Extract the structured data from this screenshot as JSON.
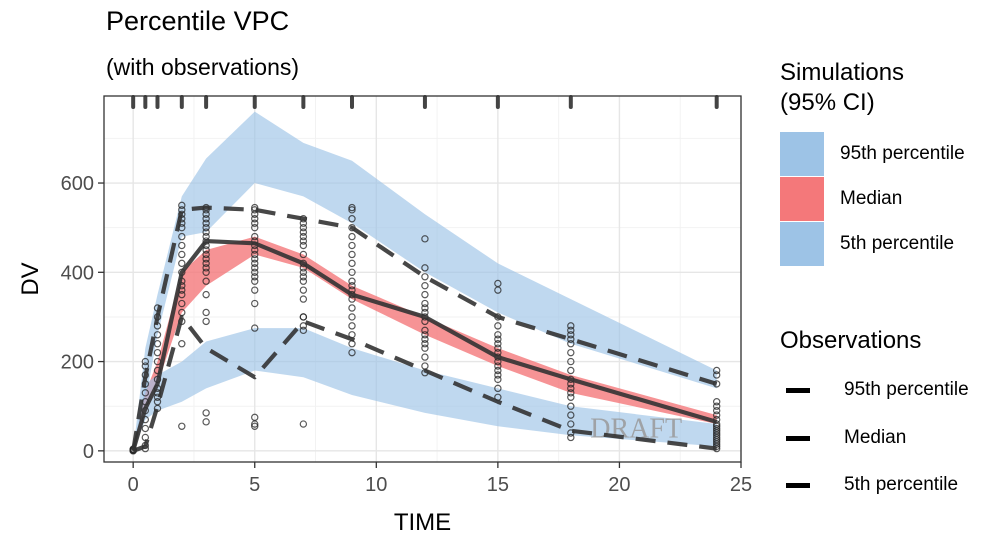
{
  "chart_data": {
    "type": "line",
    "title": "Percentile VPC",
    "subtitle": "(with observations)",
    "xlabel": "TIME",
    "ylabel": "DV",
    "xlim": [
      -1.2,
      25
    ],
    "ylim": [
      -25,
      795
    ],
    "x_ticks": [
      0,
      5,
      10,
      15,
      20,
      25
    ],
    "y_ticks": [
      0,
      200,
      400,
      600
    ],
    "grid": true,
    "watermark": "DRAFT",
    "rug_x": [
      0,
      0.5,
      1,
      2,
      3,
      5,
      7,
      9,
      12,
      15,
      18,
      24
    ],
    "sim_ci": [
      {
        "name": "95th percentile",
        "color": "#9DC3E6",
        "x": [
          0,
          0.5,
          1,
          2,
          3,
          5,
          7,
          9,
          12,
          15,
          18,
          24
        ],
        "lower": [
          0,
          110,
          260,
          480,
          490,
          600,
          570,
          510,
          400,
          310,
          240,
          140
        ],
        "upper": [
          0,
          230,
          350,
          570,
          655,
          760,
          690,
          650,
          530,
          420,
          340,
          180
        ]
      },
      {
        "name": "Median",
        "color": "#F4787A",
        "x": [
          0,
          0.5,
          1,
          2,
          3,
          5,
          7,
          9,
          12,
          15,
          18,
          24
        ],
        "lower": [
          0,
          80,
          150,
          310,
          370,
          440,
          410,
          340,
          260,
          190,
          130,
          60
        ],
        "upper": [
          0,
          130,
          200,
          400,
          450,
          480,
          440,
          370,
          300,
          230,
          170,
          80
        ]
      },
      {
        "name": "5th percentile",
        "color": "#9DC3E6",
        "x": [
          0,
          0.5,
          1,
          2,
          3,
          5,
          7,
          9,
          12,
          15,
          18,
          24
        ],
        "lower": [
          0,
          70,
          90,
          110,
          140,
          180,
          165,
          125,
          85,
          55,
          35,
          10
        ],
        "upper": [
          0,
          150,
          170,
          200,
          245,
          275,
          275,
          230,
          180,
          140,
          100,
          60
        ]
      }
    ],
    "obs_lines": [
      {
        "name": "95th percentile",
        "style": "dashed",
        "x": [
          0,
          0.5,
          1,
          2,
          3,
          5,
          7,
          9,
          12,
          15,
          18,
          24
        ],
        "y": [
          0,
          165,
          300,
          540,
          545,
          540,
          520,
          500,
          390,
          300,
          250,
          150
        ]
      },
      {
        "name": "Median",
        "style": "solid",
        "x": [
          0,
          0.5,
          1,
          2,
          3,
          5,
          7,
          9,
          12,
          15,
          18,
          24
        ],
        "y": [
          0,
          95,
          150,
          400,
          470,
          465,
          420,
          350,
          300,
          210,
          160,
          65
        ]
      },
      {
        "name": "5th percentile",
        "style": "dashed",
        "x": [
          0,
          0.5,
          1,
          2,
          3,
          5,
          7,
          9,
          12,
          15,
          18,
          24
        ],
        "y": [
          0,
          10,
          100,
          300,
          230,
          165,
          290,
          250,
          180,
          110,
          45,
          5
        ]
      }
    ],
    "observations": {
      "x": [
        0,
        0,
        0,
        0,
        0,
        0.5,
        0.5,
        0.5,
        0.5,
        0.5,
        0.5,
        0.5,
        0.5,
        0.5,
        0.5,
        0.5,
        0.5,
        1,
        1,
        1,
        1,
        1,
        1,
        1,
        1,
        1,
        1,
        1,
        1,
        1,
        1,
        2,
        2,
        2,
        2,
        2,
        2,
        2,
        2,
        2,
        2,
        2,
        2,
        2,
        2,
        2,
        2,
        2,
        2,
        2,
        2,
        3,
        3,
        3,
        3,
        3,
        3,
        3,
        3,
        3,
        3,
        3,
        3,
        3,
        3,
        3,
        3,
        3,
        3,
        3,
        3,
        3,
        3,
        5,
        5,
        5,
        5,
        5,
        5,
        5,
        5,
        5,
        5,
        5,
        5,
        5,
        5,
        5,
        5,
        5,
        5,
        5,
        5,
        5,
        5,
        5,
        7,
        7,
        7,
        7,
        7,
        7,
        7,
        7,
        7,
        7,
        7,
        7,
        7,
        7,
        7,
        7,
        7,
        7,
        7,
        7,
        9,
        9,
        9,
        9,
        9,
        9,
        9,
        9,
        9,
        9,
        9,
        9,
        9,
        9,
        9,
        9,
        9,
        9,
        9,
        9,
        12,
        12,
        12,
        12,
        12,
        12,
        12,
        12,
        12,
        12,
        12,
        12,
        12,
        12,
        12,
        12,
        12,
        12,
        15,
        15,
        15,
        15,
        15,
        15,
        15,
        15,
        15,
        15,
        15,
        15,
        15,
        15,
        15,
        15,
        15,
        18,
        18,
        18,
        18,
        18,
        18,
        18,
        18,
        18,
        18,
        18,
        18,
        18,
        18,
        18,
        18,
        18,
        18,
        24,
        24,
        24,
        24,
        24,
        24,
        24,
        24,
        24,
        24,
        24,
        24,
        24,
        24,
        24,
        24,
        24,
        24,
        24,
        24
      ],
      "y": [
        0,
        2,
        4,
        1,
        3,
        5,
        12,
        30,
        50,
        70,
        90,
        110,
        130,
        150,
        170,
        190,
        200,
        95,
        120,
        140,
        160,
        180,
        200,
        220,
        240,
        260,
        280,
        300,
        320,
        110,
        130,
        55,
        240,
        290,
        330,
        360,
        380,
        400,
        420,
        440,
        460,
        480,
        500,
        510,
        520,
        530,
        540,
        550,
        370,
        350,
        310,
        65,
        85,
        290,
        310,
        350,
        380,
        410,
        430,
        450,
        470,
        490,
        500,
        510,
        520,
        530,
        540,
        545,
        460,
        440,
        420,
        400,
        480,
        55,
        60,
        75,
        275,
        330,
        360,
        380,
        400,
        420,
        440,
        460,
        480,
        500,
        510,
        520,
        530,
        540,
        545,
        450,
        470,
        430,
        410,
        390,
        60,
        270,
        280,
        300,
        340,
        360,
        380,
        400,
        420,
        440,
        460,
        470,
        480,
        490,
        500,
        510,
        520,
        300,
        390,
        410,
        220,
        240,
        260,
        280,
        300,
        320,
        340,
        360,
        380,
        400,
        420,
        440,
        460,
        480,
        500,
        520,
        540,
        545,
        350,
        370,
        175,
        190,
        210,
        230,
        250,
        270,
        290,
        310,
        330,
        350,
        370,
        390,
        410,
        260,
        240,
        300,
        320,
        475,
        120,
        140,
        160,
        170,
        180,
        190,
        200,
        210,
        220,
        230,
        240,
        250,
        260,
        280,
        300,
        360,
        375,
        30,
        40,
        60,
        80,
        100,
        120,
        140,
        160,
        180,
        200,
        220,
        240,
        250,
        260,
        270,
        280,
        130,
        150,
        5,
        10,
        15,
        20,
        25,
        30,
        35,
        40,
        45,
        50,
        55,
        60,
        70,
        80,
        90,
        100,
        110,
        150,
        170,
        180
      ]
    }
  },
  "legend": {
    "sim_title_line1": "Simulations",
    "sim_title_line2": "(95% CI)",
    "sim_items": [
      {
        "label": "95th percentile",
        "color": "#9DC3E6"
      },
      {
        "label": "Median",
        "color": "#F4787A"
      },
      {
        "label": "5th percentile",
        "color": "#9DC3E6"
      }
    ],
    "obs_title": "Observations",
    "obs_items": [
      {
        "label": "95th percentile"
      },
      {
        "label": "Median"
      },
      {
        "label": "5th percentile"
      }
    ]
  }
}
